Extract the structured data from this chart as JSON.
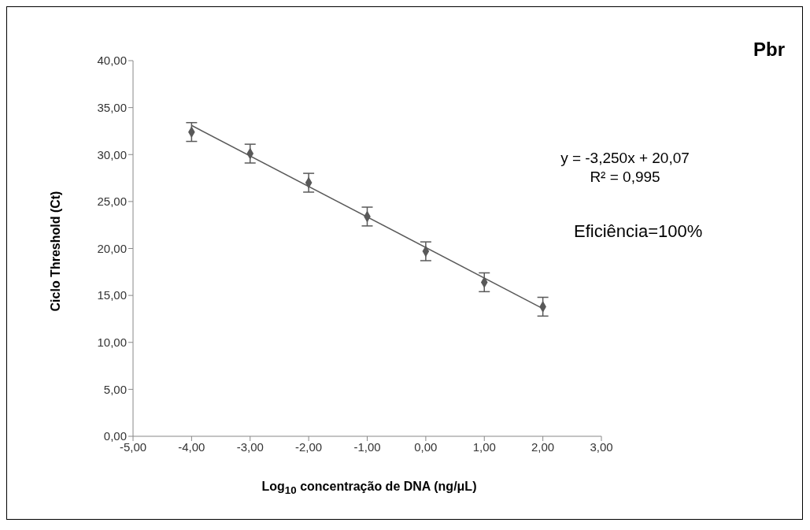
{
  "chart_data": {
    "type": "scatter",
    "title": "Pbr",
    "xlabel": "Log$_{10}$ concentração de DNA (ng/μL)",
    "ylabel": "Ciclo Threshold (Ct)",
    "annotations": [
      "y = -3,250x + 20,07",
      "R² = 0,995",
      "Eficiência=100%"
    ],
    "series": [
      {
        "color": "#595959",
        "x": [
          -4,
          -3,
          -2,
          -1,
          0,
          1,
          2
        ],
        "values": [
          32.4,
          30.1,
          27.0,
          23.4,
          19.7,
          16.4,
          13.8
        ],
        "errors": [
          1.0,
          1.0,
          1.0,
          1.0,
          1.0,
          1.0,
          1.0
        ]
      },
      {
        "type": "line",
        "marker": "none",
        "color": "#595959",
        "x": [
          -4,
          2
        ],
        "values": [
          33.1,
          13.6
        ]
      }
    ],
    "marker": "diamond",
    "grid": false,
    "legend": false,
    "xlim": [
      -5,
      3
    ],
    "xticks": [
      {
        "value": -5,
        "label": "-5,00"
      },
      {
        "value": -4,
        "label": "-4,00"
      },
      {
        "value": -3,
        "label": "-3,00"
      },
      {
        "value": -2,
        "label": "-2,00"
      },
      {
        "value": -1,
        "label": "-1,00"
      },
      {
        "value": 0,
        "label": "0,00"
      },
      {
        "value": 1,
        "label": "1,00"
      },
      {
        "value": 2,
        "label": "2,00"
      },
      {
        "value": 3,
        "label": "3,00"
      }
    ],
    "ylim": [
      0,
      40
    ],
    "yticks": [
      {
        "value": 0,
        "label": "0,00"
      },
      {
        "value": 5,
        "label": "5,00"
      },
      {
        "value": 10,
        "label": "10,00"
      },
      {
        "value": 15,
        "label": "15,00"
      },
      {
        "value": 20,
        "label": "20,00"
      },
      {
        "value": 25,
        "label": "25,00"
      },
      {
        "value": 30,
        "label": "30,00"
      },
      {
        "value": 35,
        "label": "35,00"
      },
      {
        "value": 40,
        "label": "40,00"
      }
    ]
  }
}
